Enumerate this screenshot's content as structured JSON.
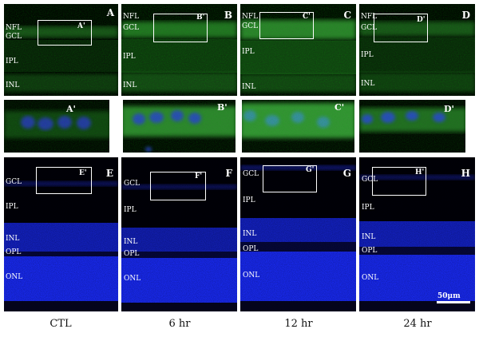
{
  "colors": {
    "green": "#3fb43f",
    "blue": "#1a2cff",
    "background": "#000000",
    "frame": "#ffffff"
  },
  "conditions": [
    "CTL",
    "6 hr",
    "12 hr",
    "24 hr"
  ],
  "panels": {
    "A": {
      "label": "A",
      "inset_label": "A'",
      "layers": [
        "NFL",
        "GCL",
        "IPL",
        "INL"
      ]
    },
    "B": {
      "label": "B",
      "inset_label": "B'",
      "layers": [
        "NFL",
        "GCL",
        "IPL",
        "INL"
      ]
    },
    "C": {
      "label": "C",
      "inset_label": "C'",
      "layers": [
        "NFL",
        "GCL",
        "IPL",
        "INL"
      ]
    },
    "D": {
      "label": "D",
      "inset_label": "D'",
      "layers": [
        "NFL",
        "GCL",
        "IPL",
        "INL"
      ]
    },
    "E": {
      "label": "E",
      "inset_label": "E'",
      "layers": [
        "GCL",
        "IPL",
        "INL",
        "OPL",
        "ONL"
      ]
    },
    "F": {
      "label": "F",
      "inset_label": "F'",
      "layers": [
        "GCL",
        "IPL",
        "INL",
        "OPL",
        "ONL"
      ]
    },
    "G": {
      "label": "G",
      "inset_label": "G'",
      "layers": [
        "GCL",
        "IPL",
        "INL",
        "OPL",
        "ONL"
      ]
    },
    "H": {
      "label": "H",
      "inset_label": "H'",
      "layers": [
        "GCL",
        "IPL",
        "INL",
        "OPL",
        "ONL"
      ]
    }
  },
  "zooms": {
    "A": "A'",
    "B": "B'",
    "C": "C'",
    "D": "D'"
  },
  "scale_bar": "50μm"
}
